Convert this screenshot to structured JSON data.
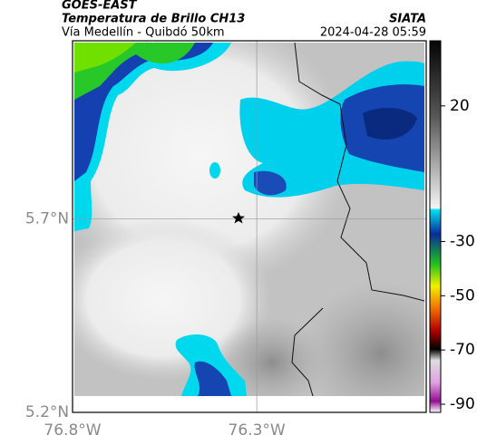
{
  "header": {
    "title": "GOES-EAST",
    "subtitle": "Temperatura de Brillo CH13",
    "caption": "Vía Medellín - Quibdó 50km",
    "source": "SIATA",
    "timestamp": "2024-04-28 05:59"
  },
  "map": {
    "xlim": [
      -76.8,
      -75.84
    ],
    "ylim": [
      5.2,
      6.16
    ],
    "xticks": [
      {
        "value": -76.8,
        "label": "76.8°W"
      },
      {
        "value": -76.3,
        "label": "76.3°W"
      }
    ],
    "yticks": [
      {
        "value": 5.2,
        "label": "5.2°N"
      },
      {
        "value": 5.7,
        "label": "5.7°N"
      }
    ]
  },
  "colorbar": {
    "lim": [
      -93,
      44
    ],
    "ticks": [
      20,
      -30,
      -50,
      -70,
      -90
    ]
  }
}
